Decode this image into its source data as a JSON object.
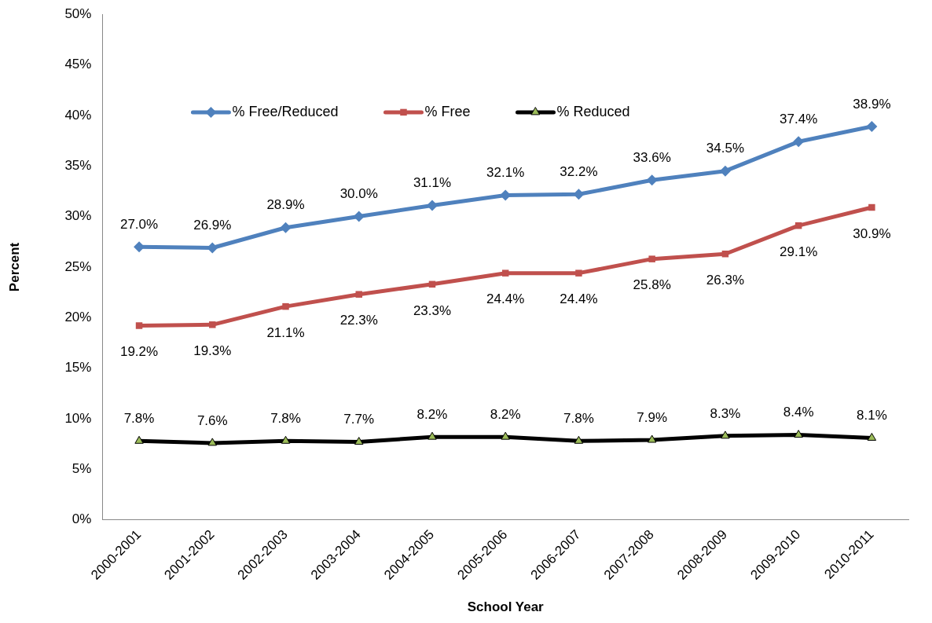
{
  "chart_data": {
    "type": "line",
    "xlabel": "School Year",
    "ylabel": "Percent",
    "categories": [
      "2000-2001",
      "2001-2002",
      "2002-2003",
      "2003-2004",
      "2004-2005",
      "2005-2006",
      "2006-2007",
      "2007-2008",
      "2008-2009",
      "2009-2010",
      "2010-2011"
    ],
    "series": [
      {
        "name": "% Free/Reduced",
        "color": "#4f81bd",
        "marker": "diamond",
        "values": [
          27.0,
          26.9,
          28.9,
          30.0,
          31.1,
          32.1,
          32.2,
          33.6,
          34.5,
          37.4,
          38.9
        ],
        "value_labels": [
          "27.0%",
          "26.9%",
          "28.9%",
          "30.0%",
          "31.1%",
          "32.1%",
          "32.2%",
          "33.6%",
          "34.5%",
          "37.4%",
          "38.9%"
        ]
      },
      {
        "name": "% Free",
        "color": "#c0504d",
        "marker": "square",
        "values": [
          19.2,
          19.3,
          21.1,
          22.3,
          23.3,
          24.4,
          24.4,
          25.8,
          26.3,
          29.1,
          30.9
        ],
        "value_labels": [
          "19.2%",
          "19.3%",
          "21.1%",
          "22.3%",
          "23.3%",
          "24.4%",
          "24.4%",
          "25.8%",
          "26.3%",
          "29.1%",
          "30.9%"
        ]
      },
      {
        "name": "% Reduced",
        "color": "#000000",
        "marker": "triangle",
        "colors": [
          "#9bbb59",
          "#9bbb59",
          "#9bbb59",
          "#9bbb59",
          "#9bbb59",
          "#9bbb59",
          "#9bbb59",
          "#9bbb59",
          "#9bbb59",
          "#9bbb59",
          "#9bbb59"
        ],
        "values": [
          7.8,
          7.6,
          7.8,
          7.7,
          8.2,
          8.2,
          7.8,
          7.9,
          8.3,
          8.4,
          8.1
        ],
        "value_labels": [
          "7.8%",
          "7.6%",
          "7.8%",
          "7.7%",
          "8.2%",
          "8.2%",
          "7.8%",
          "7.9%",
          "8.3%",
          "8.4%",
          "8.1%"
        ]
      }
    ],
    "ylim": [
      0,
      50
    ],
    "yticks": [
      {
        "value": 0,
        "label": "0%"
      },
      {
        "value": 5,
        "label": "5%"
      },
      {
        "value": 10,
        "label": "10%"
      },
      {
        "value": 15,
        "label": "15%"
      },
      {
        "value": 20,
        "label": "20%"
      },
      {
        "value": 25,
        "label": "25%"
      },
      {
        "value": 30,
        "label": "30%"
      },
      {
        "value": 35,
        "label": "35%"
      },
      {
        "value": 40,
        "label": "40%"
      },
      {
        "value": 45,
        "label": "45%"
      },
      {
        "value": 50,
        "label": "50%"
      }
    ],
    "grid": false,
    "legend": "top"
  }
}
